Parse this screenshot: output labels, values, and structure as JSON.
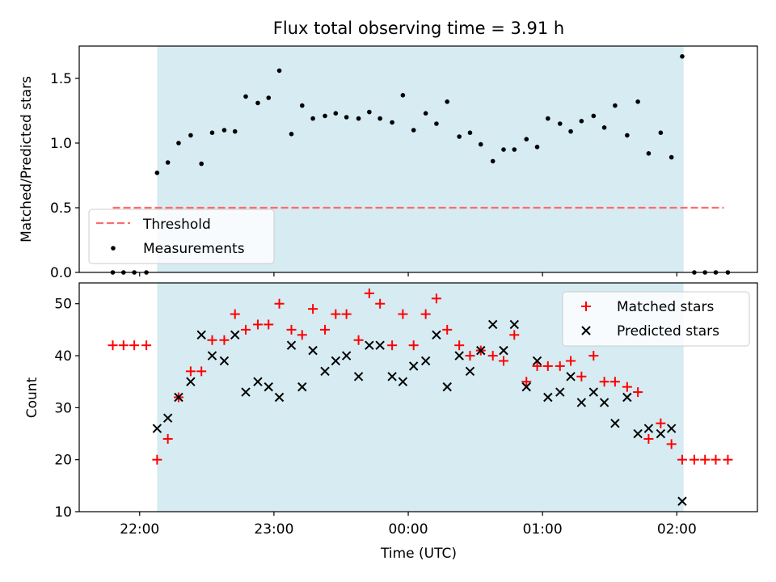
{
  "chart_data": [
    {
      "type": "scatter",
      "title": "Flux total observing time = 3.91 h",
      "xlabel": "",
      "ylabel": "Matched/Predicted stars",
      "xlim_hours": [
        21.55,
        26.6
      ],
      "ylim": [
        0,
        1.75
      ],
      "yticks": [
        0.0,
        0.5,
        1.0,
        1.5
      ],
      "ytick_labels": [
        "0.0",
        "0.5",
        "1.0",
        "1.5"
      ],
      "xticks_hours": [
        22,
        23,
        24,
        25,
        26
      ],
      "shaded_span_hours": [
        22.13,
        26.05
      ],
      "threshold": {
        "name": "Threshold",
        "y": 0.5,
        "x_from": 21.8,
        "x_to": 26.35,
        "color": "#ff6b6b"
      },
      "legend": {
        "position": "lower-left",
        "entries": [
          "Threshold",
          "Measurements"
        ]
      },
      "series": [
        {
          "name": "Measurements",
          "color": "#000000",
          "marker": "dot",
          "points": [
            [
              21.8,
              0.0
            ],
            [
              21.88,
              0.0
            ],
            [
              21.96,
              0.0
            ],
            [
              22.05,
              0.0
            ],
            [
              22.13,
              0.77
            ],
            [
              22.21,
              0.85
            ],
            [
              22.29,
              1.0
            ],
            [
              22.38,
              1.06
            ],
            [
              22.46,
              0.84
            ],
            [
              22.54,
              1.08
            ],
            [
              22.63,
              1.1
            ],
            [
              22.71,
              1.09
            ],
            [
              22.79,
              1.36
            ],
            [
              22.88,
              1.31
            ],
            [
              22.96,
              1.35
            ],
            [
              23.04,
              1.56
            ],
            [
              23.13,
              1.07
            ],
            [
              23.21,
              1.29
            ],
            [
              23.29,
              1.19
            ],
            [
              23.38,
              1.21
            ],
            [
              23.46,
              1.23
            ],
            [
              23.54,
              1.2
            ],
            [
              23.63,
              1.19
            ],
            [
              23.71,
              1.24
            ],
            [
              23.79,
              1.19
            ],
            [
              23.88,
              1.16
            ],
            [
              23.96,
              1.37
            ],
            [
              24.04,
              1.1
            ],
            [
              24.13,
              1.23
            ],
            [
              24.21,
              1.15
            ],
            [
              24.29,
              1.32
            ],
            [
              24.38,
              1.05
            ],
            [
              24.46,
              1.08
            ],
            [
              24.54,
              0.99
            ],
            [
              24.63,
              0.86
            ],
            [
              24.71,
              0.95
            ],
            [
              24.79,
              0.95
            ],
            [
              24.88,
              1.03
            ],
            [
              24.96,
              0.97
            ],
            [
              25.04,
              1.19
            ],
            [
              25.13,
              1.15
            ],
            [
              25.21,
              1.09
            ],
            [
              25.29,
              1.17
            ],
            [
              25.38,
              1.21
            ],
            [
              25.46,
              1.12
            ],
            [
              25.54,
              1.29
            ],
            [
              25.63,
              1.06
            ],
            [
              25.71,
              1.32
            ],
            [
              25.79,
              0.92
            ],
            [
              25.88,
              1.08
            ],
            [
              25.96,
              0.89
            ],
            [
              26.04,
              1.67
            ],
            [
              26.13,
              0.0
            ],
            [
              26.21,
              0.0
            ],
            [
              26.29,
              0.0
            ],
            [
              26.38,
              0.0
            ]
          ]
        }
      ]
    },
    {
      "type": "scatter",
      "title": "",
      "xlabel": "Time (UTC)",
      "ylabel": "Count",
      "xlim_hours": [
        21.55,
        26.6
      ],
      "ylim": [
        10,
        54
      ],
      "yticks": [
        10,
        20,
        30,
        40,
        50
      ],
      "ytick_labels": [
        "10",
        "20",
        "30",
        "40",
        "50"
      ],
      "xticks_hours": [
        22,
        23,
        24,
        25,
        26
      ],
      "xtick_labels": [
        "22:00",
        "23:00",
        "00:00",
        "01:00",
        "02:00"
      ],
      "shaded_span_hours": [
        22.13,
        26.05
      ],
      "legend": {
        "position": "top-right",
        "entries": [
          "Matched stars",
          "Predicted stars"
        ]
      },
      "series": [
        {
          "name": "Matched stars",
          "color": "#ff0000",
          "marker": "plus",
          "points": [
            [
              21.8,
              42
            ],
            [
              21.88,
              42
            ],
            [
              21.96,
              42
            ],
            [
              22.05,
              42
            ],
            [
              22.13,
              20
            ],
            [
              22.21,
              24
            ],
            [
              22.29,
              32
            ],
            [
              22.38,
              37
            ],
            [
              22.46,
              37
            ],
            [
              22.54,
              43
            ],
            [
              22.63,
              43
            ],
            [
              22.71,
              48
            ],
            [
              22.79,
              45
            ],
            [
              22.88,
              46
            ],
            [
              22.96,
              46
            ],
            [
              23.04,
              50
            ],
            [
              23.13,
              45
            ],
            [
              23.21,
              44
            ],
            [
              23.29,
              49
            ],
            [
              23.38,
              45
            ],
            [
              23.46,
              48
            ],
            [
              23.54,
              48
            ],
            [
              23.63,
              43
            ],
            [
              23.71,
              52
            ],
            [
              23.79,
              50
            ],
            [
              23.88,
              42
            ],
            [
              23.96,
              48
            ],
            [
              24.04,
              42
            ],
            [
              24.13,
              48
            ],
            [
              24.21,
              51
            ],
            [
              24.29,
              45
            ],
            [
              24.38,
              42
            ],
            [
              24.46,
              40
            ],
            [
              24.54,
              41
            ],
            [
              24.63,
              40
            ],
            [
              24.71,
              39
            ],
            [
              24.79,
              44
            ],
            [
              24.88,
              35
            ],
            [
              24.96,
              38
            ],
            [
              25.04,
              38
            ],
            [
              25.13,
              38
            ],
            [
              25.21,
              39
            ],
            [
              25.29,
              36
            ],
            [
              25.38,
              40
            ],
            [
              25.46,
              35
            ],
            [
              25.54,
              35
            ],
            [
              25.63,
              34
            ],
            [
              25.71,
              33
            ],
            [
              25.79,
              24
            ],
            [
              25.88,
              27
            ],
            [
              25.96,
              23
            ],
            [
              26.04,
              20
            ],
            [
              26.13,
              20
            ],
            [
              26.21,
              20
            ],
            [
              26.29,
              20
            ],
            [
              26.38,
              20
            ]
          ]
        },
        {
          "name": "Predicted stars",
          "color": "#000000",
          "marker": "x",
          "points": [
            [
              22.13,
              26
            ],
            [
              22.21,
              28
            ],
            [
              22.29,
              32
            ],
            [
              22.38,
              35
            ],
            [
              22.46,
              44
            ],
            [
              22.54,
              40
            ],
            [
              22.63,
              39
            ],
            [
              22.71,
              44
            ],
            [
              22.79,
              33
            ],
            [
              22.88,
              35
            ],
            [
              22.96,
              34
            ],
            [
              23.04,
              32
            ],
            [
              23.13,
              42
            ],
            [
              23.21,
              34
            ],
            [
              23.29,
              41
            ],
            [
              23.38,
              37
            ],
            [
              23.46,
              39
            ],
            [
              23.54,
              40
            ],
            [
              23.63,
              36
            ],
            [
              23.71,
              42
            ],
            [
              23.79,
              42
            ],
            [
              23.88,
              36
            ],
            [
              23.96,
              35
            ],
            [
              24.04,
              38
            ],
            [
              24.13,
              39
            ],
            [
              24.21,
              44
            ],
            [
              24.29,
              34
            ],
            [
              24.38,
              40
            ],
            [
              24.46,
              37
            ],
            [
              24.54,
              41
            ],
            [
              24.63,
              46
            ],
            [
              24.71,
              41
            ],
            [
              24.79,
              46
            ],
            [
              24.88,
              34
            ],
            [
              24.96,
              39
            ],
            [
              25.04,
              32
            ],
            [
              25.13,
              33
            ],
            [
              25.21,
              36
            ],
            [
              25.29,
              31
            ],
            [
              25.38,
              33
            ],
            [
              25.46,
              31
            ],
            [
              25.54,
              27
            ],
            [
              25.63,
              32
            ],
            [
              25.71,
              25
            ],
            [
              25.79,
              26
            ],
            [
              25.88,
              25
            ],
            [
              25.96,
              26
            ],
            [
              26.04,
              12
            ]
          ]
        }
      ]
    }
  ],
  "style": {
    "shade_color": "#add8e6",
    "shade_opacity": 0.5
  }
}
